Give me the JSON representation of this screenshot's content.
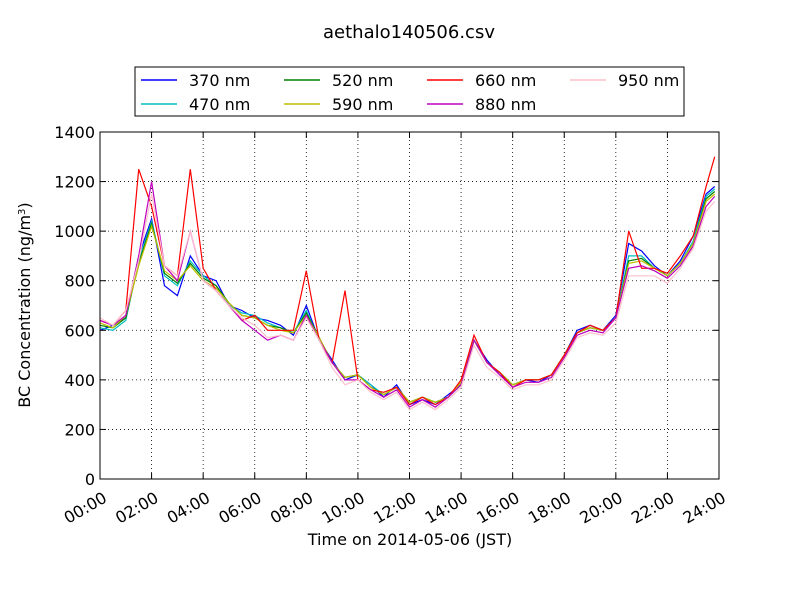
{
  "chart_data": {
    "type": "line",
    "title": "aethalo140506.csv",
    "xlabel": "Time on 2014-05-06 (JST)",
    "ylabel": "BC Concentration (ng/m",
    "ylabel_sup": "3",
    "ylabel_end": ")",
    "xlim": [
      "00:00",
      "24:00"
    ],
    "ylim": [
      0,
      1400
    ],
    "x_ticks": [
      "00:00",
      "02:00",
      "04:00",
      "06:00",
      "08:00",
      "10:00",
      "12:00",
      "14:00",
      "16:00",
      "18:00",
      "20:00",
      "22:00",
      "24:00"
    ],
    "y_ticks": [
      0,
      200,
      400,
      600,
      800,
      1000,
      1200,
      1400
    ],
    "grid": true,
    "legend_placement": "top-center",
    "x": [
      "00:00",
      "00:30",
      "01:00",
      "01:30",
      "02:00",
      "02:30",
      "03:00",
      "03:30",
      "04:00",
      "04:30",
      "05:00",
      "05:30",
      "06:00",
      "06:30",
      "07:00",
      "07:30",
      "08:00",
      "08:30",
      "09:00",
      "09:30",
      "10:00",
      "10:30",
      "11:00",
      "11:30",
      "12:00",
      "12:30",
      "13:00",
      "13:30",
      "14:00",
      "14:30",
      "15:00",
      "15:30",
      "16:00",
      "16:30",
      "17:00",
      "17:30",
      "18:00",
      "18:30",
      "19:00",
      "19:30",
      "20:00",
      "20:30",
      "21:00",
      "21:30",
      "22:00",
      "22:30",
      "23:00",
      "23:30",
      "23:50"
    ],
    "series": [
      {
        "name": "370 nm",
        "color": "#0000ff",
        "values": [
          600,
          620,
          650,
          900,
          1050,
          780,
          740,
          900,
          820,
          800,
          700,
          680,
          650,
          640,
          620,
          580,
          700,
          560,
          480,
          400,
          420,
          380,
          330,
          380,
          300,
          320,
          300,
          340,
          380,
          560,
          480,
          420,
          380,
          400,
          390,
          420,
          500,
          600,
          620,
          600,
          660,
          950,
          920,
          860,
          820,
          880,
          980,
          1150,
          1180
        ]
      },
      {
        "name": "470 nm",
        "color": "#00bfbf",
        "values": [
          610,
          600,
          640,
          880,
          1040,
          820,
          780,
          880,
          820,
          780,
          700,
          670,
          660,
          630,
          610,
          590,
          680,
          560,
          470,
          410,
          420,
          380,
          340,
          370,
          310,
          330,
          310,
          330,
          380,
          560,
          470,
          430,
          380,
          400,
          400,
          420,
          500,
          590,
          610,
          600,
          650,
          900,
          900,
          850,
          820,
          870,
          960,
          1140,
          1170
        ]
      },
      {
        "name": "520 nm",
        "color": "#008000",
        "values": [
          620,
          610,
          650,
          870,
          1030,
          830,
          790,
          870,
          810,
          780,
          710,
          660,
          650,
          620,
          610,
          590,
          670,
          570,
          470,
          410,
          420,
          370,
          340,
          370,
          310,
          330,
          310,
          330,
          390,
          560,
          470,
          430,
          380,
          400,
          400,
          420,
          500,
          590,
          610,
          600,
          650,
          880,
          890,
          850,
          820,
          870,
          950,
          1130,
          1160
        ]
      },
      {
        "name": "590 nm",
        "color": "#bfbf00",
        "values": [
          630,
          610,
          660,
          860,
          1020,
          840,
          800,
          860,
          800,
          770,
          710,
          660,
          650,
          620,
          600,
          590,
          660,
          570,
          470,
          410,
          420,
          370,
          340,
          370,
          310,
          330,
          310,
          330,
          390,
          560,
          470,
          430,
          380,
          400,
          400,
          420,
          500,
          590,
          610,
          600,
          650,
          870,
          880,
          850,
          820,
          870,
          950,
          1120,
          1150
        ]
      },
      {
        "name": "660 nm",
        "color": "#ff0000",
        "values": [
          640,
          620,
          680,
          1250,
          1100,
          860,
          820,
          1250,
          850,
          760,
          700,
          640,
          660,
          600,
          600,
          600,
          840,
          560,
          470,
          760,
          400,
          360,
          350,
          370,
          300,
          330,
          300,
          330,
          400,
          580,
          470,
          430,
          370,
          400,
          400,
          420,
          500,
          590,
          620,
          600,
          650,
          1000,
          850,
          850,
          830,
          900,
          980,
          1180,
          1300
        ]
      },
      {
        "name": "880 nm",
        "color": "#bf00bf",
        "values": [
          640,
          620,
          660,
          900,
          1200,
          860,
          800,
          1000,
          800,
          760,
          700,
          640,
          600,
          560,
          580,
          560,
          660,
          560,
          470,
          400,
          400,
          360,
          330,
          360,
          290,
          320,
          290,
          330,
          380,
          560,
          470,
          420,
          370,
          390,
          390,
          410,
          490,
          580,
          600,
          590,
          650,
          850,
          860,
          840,
          810,
          860,
          940,
          1100,
          1140
        ]
      },
      {
        "name": "950 nm",
        "color": "#ffc0cb",
        "values": [
          650,
          620,
          680,
          880,
          1150,
          860,
          820,
          1000,
          800,
          760,
          700,
          650,
          620,
          570,
          580,
          560,
          650,
          560,
          450,
          380,
          400,
          350,
          320,
          350,
          280,
          310,
          280,
          320,
          370,
          540,
          450,
          410,
          360,
          380,
          380,
          400,
          480,
          570,
          590,
          580,
          630,
          820,
          820,
          820,
          790,
          850,
          930,
          1080,
          1120
        ]
      }
    ]
  }
}
